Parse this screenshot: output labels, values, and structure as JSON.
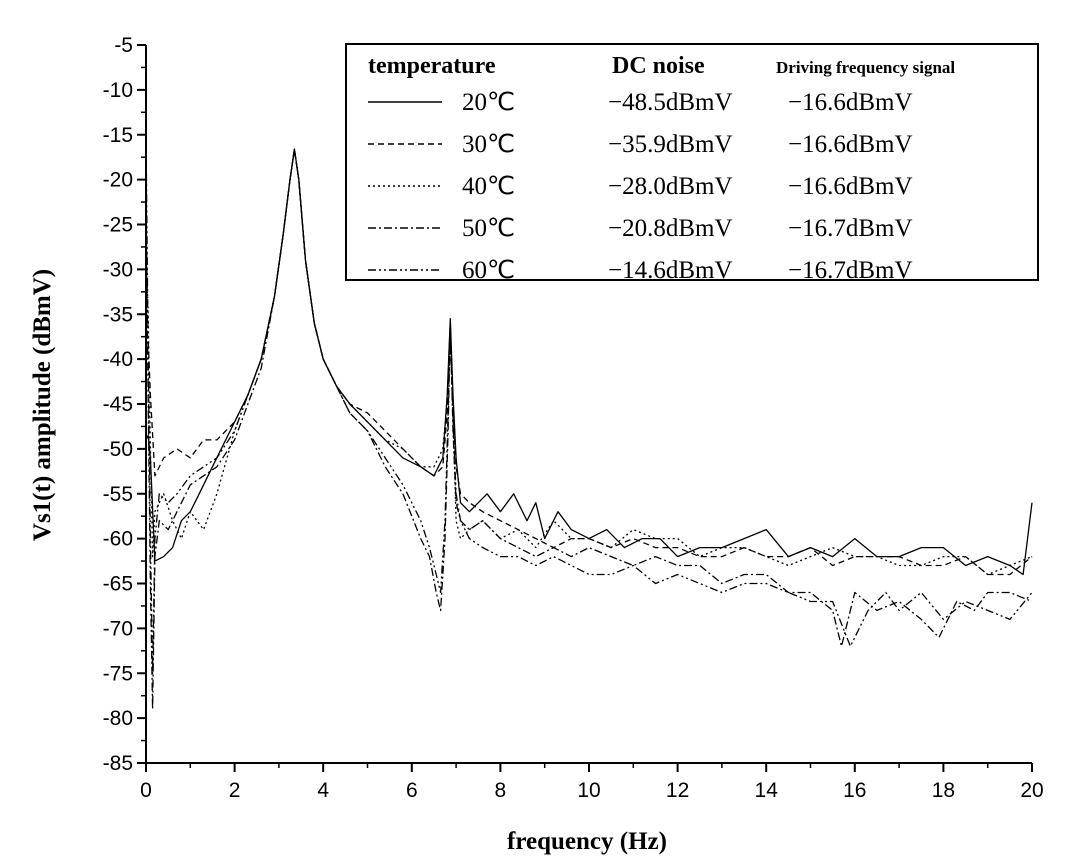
{
  "chart_data": {
    "type": "line",
    "xlabel": "frequency (Hz)",
    "ylabel": "Vs1(t) amplitude (dBmV)",
    "xlim": [
      0,
      20
    ],
    "ylim": [
      -85,
      -5
    ],
    "xticks": [
      0,
      2,
      4,
      6,
      8,
      10,
      12,
      14,
      16,
      18,
      20
    ],
    "yticks": [
      -5,
      -10,
      -15,
      -20,
      -25,
      -30,
      -35,
      -40,
      -45,
      -50,
      -55,
      -60,
      -65,
      -70,
      -75,
      -80,
      -85
    ],
    "grid": false,
    "legend": {
      "placement": "top-right",
      "headers": [
        "temperature",
        "DC noise",
        "Driving frequency signal"
      ],
      "rows": [
        {
          "temperature": "20℃",
          "dc_noise": "−48.5dBmV",
          "driving": "−16.6dBmV",
          "dash": "solid"
        },
        {
          "temperature": "30℃",
          "dc_noise": "−35.9dBmV",
          "driving": "−16.6dBmV",
          "dash": "dash"
        },
        {
          "temperature": "40℃",
          "dc_noise": "−28.0dBmV",
          "driving": "−16.6dBmV",
          "dash": "dot"
        },
        {
          "temperature": "50℃",
          "dc_noise": "−20.8dBmV",
          "driving": "−16.7dBmV",
          "dash": "dashdot"
        },
        {
          "temperature": "60℃",
          "dc_noise": "−14.6dBmV",
          "driving": "−16.7dBmV",
          "dash": "dashdotdot"
        }
      ]
    },
    "series": [
      {
        "name": "20℃",
        "x": [
          0,
          0.05,
          0.1,
          0.2,
          0.4,
          0.6,
          0.8,
          1.0,
          1.2,
          1.5,
          1.8,
          2.0,
          2.3,
          2.6,
          2.9,
          3.1,
          3.25,
          3.35,
          3.45,
          3.6,
          3.8,
          4.0,
          4.3,
          4.6,
          5.0,
          5.4,
          5.8,
          6.2,
          6.5,
          6.7,
          6.8,
          6.87,
          6.93,
          7.0,
          7.1,
          7.3,
          7.5,
          7.7,
          8.0,
          8.3,
          8.6,
          8.8,
          9.0,
          9.3,
          9.6,
          10.0,
          10.4,
          10.8,
          11.2,
          11.6,
          12.0,
          12.5,
          13.0,
          13.5,
          14.0,
          14.5,
          15.0,
          15.5,
          16.0,
          16.5,
          17.0,
          17.5,
          18.0,
          18.5,
          19.0,
          19.5,
          19.8,
          20.0
        ],
        "values": [
          -49,
          -48.5,
          -51,
          -62.5,
          -62,
          -61,
          -58,
          -57,
          -55,
          -52,
          -49,
          -47,
          -44,
          -40,
          -33,
          -26,
          -20,
          -16.6,
          -20,
          -29,
          -36,
          -40,
          -43,
          -45,
          -47,
          -49,
          -51,
          -52,
          -53,
          -51,
          -44,
          -35.5,
          -44,
          -51,
          -56,
          -57,
          -56,
          -55,
          -57,
          -55,
          -58,
          -56,
          -60,
          -57,
          -59,
          -60,
          -59,
          -61,
          -60,
          -60,
          -62,
          -61,
          -61,
          -60,
          -59,
          -62,
          -61,
          -62,
          -60,
          -62,
          -62,
          -61,
          -61,
          -63,
          -62,
          -63,
          -64,
          -56
        ]
      },
      {
        "name": "30℃",
        "x": [
          0,
          0.05,
          0.1,
          0.2,
          0.4,
          0.7,
          1.0,
          1.3,
          1.6,
          2.0,
          2.3,
          2.6,
          2.9,
          3.1,
          3.25,
          3.35,
          3.45,
          3.6,
          3.8,
          4.0,
          4.3,
          4.6,
          5.0,
          5.4,
          5.8,
          6.2,
          6.5,
          6.7,
          6.8,
          6.87,
          6.93,
          7.0,
          7.1,
          7.3,
          7.6,
          8.0,
          8.4,
          8.8,
          9.2,
          9.6,
          10.0,
          10.5,
          11.0,
          11.5,
          12.0,
          12.5,
          13.0,
          13.5,
          14.0,
          14.5,
          15.0,
          15.5,
          16.0,
          16.5,
          17.0,
          17.5,
          18.0,
          18.5,
          19.0,
          19.5,
          20.0
        ],
        "values": [
          -35.9,
          -38,
          -44,
          -53,
          -51,
          -50,
          -51,
          -49,
          -49,
          -47,
          -44,
          -40,
          -33,
          -26,
          -20,
          -16.6,
          -20,
          -29,
          -36,
          -40,
          -43,
          -45,
          -46,
          -48,
          -50,
          -52,
          -53,
          -52,
          -46,
          -38,
          -46,
          -52,
          -55,
          -56,
          -57,
          -58,
          -59,
          -60,
          -61,
          -60,
          -60,
          -61,
          -60,
          -61,
          -61,
          -62,
          -62,
          -61,
          -62,
          -62,
          -61,
          -63,
          -62,
          -62,
          -62,
          -63,
          -63,
          -62,
          -64,
          -64,
          -62
        ]
      },
      {
        "name": "40℃",
        "x": [
          0,
          0.05,
          0.1,
          0.15,
          0.2,
          0.4,
          0.6,
          0.8,
          1.0,
          1.3,
          1.6,
          2.0,
          2.3,
          2.6,
          2.9,
          3.1,
          3.25,
          3.35,
          3.45,
          3.6,
          3.8,
          4.0,
          4.3,
          4.6,
          5.0,
          5.4,
          5.8,
          6.2,
          6.5,
          6.7,
          6.8,
          6.87,
          6.93,
          7.0,
          7.1,
          7.3,
          7.6,
          8.0,
          8.4,
          8.8,
          9.2,
          9.6,
          10.0,
          10.5,
          11.0,
          11.5,
          12.0,
          12.5,
          13.0,
          13.5,
          14.0,
          14.5,
          15.0,
          15.5,
          16.0,
          16.5,
          17.0,
          17.5,
          18.0,
          18.5,
          19.0,
          19.5,
          20.0
        ],
        "values": [
          -28,
          -35,
          -50,
          -62,
          -57,
          -55,
          -58,
          -60,
          -57,
          -59,
          -55,
          -48,
          -44,
          -40,
          -33,
          -26,
          -20,
          -16.6,
          -20,
          -29,
          -36,
          -40,
          -43,
          -45,
          -47,
          -49,
          -50,
          -52,
          -52,
          -50,
          -45,
          -36,
          -46,
          -58,
          -60,
          -59,
          -58,
          -60,
          -59,
          -61,
          -58,
          -60,
          -60,
          -61,
          -59,
          -60,
          -60,
          -62,
          -61,
          -61,
          -62,
          -63,
          -62,
          -61,
          -62,
          -62,
          -63,
          -63,
          -62,
          -62,
          -64,
          -63,
          -62
        ]
      },
      {
        "name": "50℃",
        "x": [
          0,
          0.05,
          0.1,
          0.15,
          0.2,
          0.3,
          0.5,
          0.7,
          1.0,
          1.3,
          1.6,
          2.0,
          2.3,
          2.6,
          2.9,
          3.1,
          3.25,
          3.35,
          3.45,
          3.6,
          3.8,
          4.0,
          4.3,
          4.6,
          5.0,
          5.4,
          5.8,
          6.2,
          6.4,
          6.55,
          6.65,
          6.75,
          6.82,
          6.87,
          6.93,
          7.0,
          7.1,
          7.3,
          7.6,
          8.0,
          8.4,
          8.8,
          9.2,
          9.6,
          10.0,
          10.5,
          11.0,
          11.5,
          12.0,
          12.5,
          13.0,
          13.5,
          14.0,
          14.5,
          15.0,
          15.5,
          15.7,
          16.0,
          16.5,
          17.0,
          17.5,
          17.9,
          18.3,
          18.7,
          19.0,
          19.5,
          20.0
        ],
        "values": [
          -20.8,
          -45,
          -65,
          -79,
          -62,
          -58,
          -59,
          -57,
          -54,
          -53,
          -52,
          -49,
          -45,
          -41,
          -33,
          -26,
          -20,
          -16.7,
          -20,
          -29,
          -36,
          -40,
          -43,
          -46,
          -48,
          -52,
          -55,
          -60,
          -62,
          -66,
          -68,
          -60,
          -48,
          -36,
          -48,
          -56,
          -58,
          -59,
          -58,
          -60,
          -61,
          -62,
          -61,
          -62,
          -61,
          -62,
          -63,
          -62,
          -63,
          -63,
          -65,
          -64,
          -64,
          -66,
          -66,
          -68,
          -72,
          -66,
          -68,
          -67,
          -69,
          -71,
          -67,
          -68,
          -66,
          -66,
          -67
        ]
      },
      {
        "name": "60℃",
        "x": [
          0,
          0.05,
          0.1,
          0.15,
          0.2,
          0.3,
          0.5,
          0.7,
          1.0,
          1.3,
          1.6,
          2.0,
          2.3,
          2.6,
          2.9,
          3.1,
          3.25,
          3.35,
          3.45,
          3.6,
          3.8,
          4.0,
          4.3,
          4.6,
          5.0,
          5.4,
          5.8,
          6.2,
          6.4,
          6.55,
          6.65,
          6.75,
          6.82,
          6.87,
          6.93,
          7.0,
          7.1,
          7.3,
          7.6,
          8.0,
          8.4,
          8.8,
          9.2,
          9.6,
          10.0,
          10.5,
          11.0,
          11.5,
          12.0,
          12.5,
          13.0,
          13.5,
          14.0,
          14.5,
          15.0,
          15.5,
          15.9,
          16.3,
          16.7,
          17.0,
          17.5,
          18.0,
          18.5,
          19.0,
          19.5,
          20.0
        ],
        "values": [
          -14.6,
          -40,
          -60,
          -75,
          -60,
          -55,
          -56,
          -55,
          -53,
          -52,
          -51,
          -48,
          -44,
          -40,
          -33,
          -26,
          -20,
          -16.7,
          -20,
          -29,
          -36,
          -40,
          -43,
          -46,
          -48,
          -51,
          -54,
          -58,
          -61,
          -64,
          -66,
          -58,
          -46,
          -36,
          -47,
          -55,
          -58,
          -60,
          -61,
          -62,
          -62,
          -63,
          -62,
          -63,
          -64,
          -64,
          -63,
          -65,
          -64,
          -65,
          -66,
          -65,
          -65,
          -66,
          -67,
          -67,
          -72,
          -68,
          -66,
          -68,
          -66,
          -69,
          -67,
          -68,
          -69,
          -66
        ]
      }
    ]
  }
}
